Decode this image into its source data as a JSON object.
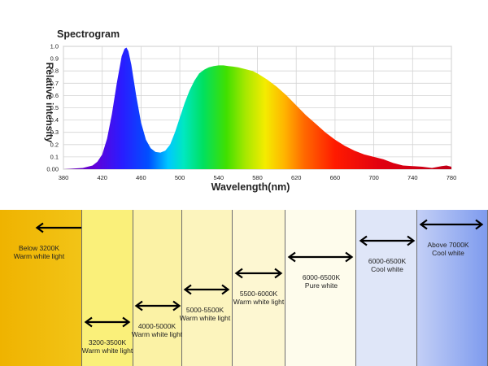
{
  "chart_data": {
    "type": "area",
    "title": "Spectrogram",
    "xlabel": "Wavelength(nm)",
    "ylabel": "Relative intensity",
    "xlim": [
      380,
      780
    ],
    "ylim": [
      0,
      1.0
    ],
    "grid": true,
    "fill": "wavelength-rainbow",
    "x_ticks": [
      380,
      420,
      460,
      500,
      540,
      580,
      620,
      660,
      700,
      740,
      780
    ],
    "y_ticks": [
      0.0,
      0.1,
      0.2,
      0.3,
      0.4,
      0.5,
      0.6,
      0.7,
      0.8,
      0.9,
      1.0
    ],
    "x_tick_labels": [
      "380",
      "420",
      "460",
      "500",
      "540",
      "580",
      "620",
      "660",
      "700",
      "740",
      "780"
    ],
    "y_tick_labels": [
      "0.00",
      "0.1",
      "0.2",
      "0.3",
      "0.4",
      "0.5",
      "0.6",
      "0.7",
      "0.8",
      "0.9",
      "1.0"
    ],
    "x": [
      380,
      390,
      400,
      410,
      415,
      420,
      425,
      430,
      435,
      440,
      443,
      445,
      447,
      450,
      455,
      460,
      465,
      470,
      475,
      480,
      485,
      490,
      495,
      500,
      505,
      510,
      515,
      520,
      525,
      530,
      535,
      540,
      545,
      550,
      555,
      560,
      565,
      570,
      575,
      580,
      590,
      600,
      610,
      620,
      630,
      640,
      650,
      660,
      670,
      680,
      690,
      700,
      710,
      720,
      730,
      740,
      750,
      760,
      770,
      775,
      780
    ],
    "y": [
      0.0,
      0.005,
      0.01,
      0.03,
      0.06,
      0.12,
      0.25,
      0.45,
      0.7,
      0.92,
      0.98,
      0.99,
      0.96,
      0.85,
      0.6,
      0.38,
      0.24,
      0.17,
      0.14,
      0.135,
      0.15,
      0.2,
      0.3,
      0.42,
      0.54,
      0.64,
      0.72,
      0.78,
      0.81,
      0.83,
      0.84,
      0.845,
      0.845,
      0.84,
      0.835,
      0.83,
      0.82,
      0.81,
      0.8,
      0.78,
      0.73,
      0.67,
      0.6,
      0.52,
      0.44,
      0.37,
      0.3,
      0.24,
      0.19,
      0.15,
      0.12,
      0.1,
      0.08,
      0.05,
      0.03,
      0.025,
      0.02,
      0.01,
      0.025,
      0.03,
      0.02
    ]
  },
  "temperature_bands": [
    {
      "label": "Below 3200K",
      "sub": "Warm white light",
      "color": "#f2c417",
      "arrow": "left"
    },
    {
      "label": "3200-3500K",
      "sub": "Warm white light",
      "color": "#faf07a",
      "arrow": "both"
    },
    {
      "label": "4000-5000K",
      "sub": "Warm white light",
      "color": "#fbf2a5",
      "arrow": "both"
    },
    {
      "label": "5000-5500K",
      "sub": "Warm white light",
      "color": "#fcf4bd",
      "arrow": "both"
    },
    {
      "label": "5500-6000K",
      "sub": "Warm white light",
      "color": "#fdf7d2",
      "arrow": "both"
    },
    {
      "label": "6000-6500K",
      "sub": "Pure white",
      "color": "#fefcec",
      "arrow": "both"
    },
    {
      "label": "6000-6500K",
      "sub": "Cool white",
      "color": "#dfe6f8",
      "arrow": "both"
    },
    {
      "label": "Above 7000K",
      "sub": "Cool white",
      "color": "#9fb3f2",
      "arrow": "both"
    }
  ]
}
